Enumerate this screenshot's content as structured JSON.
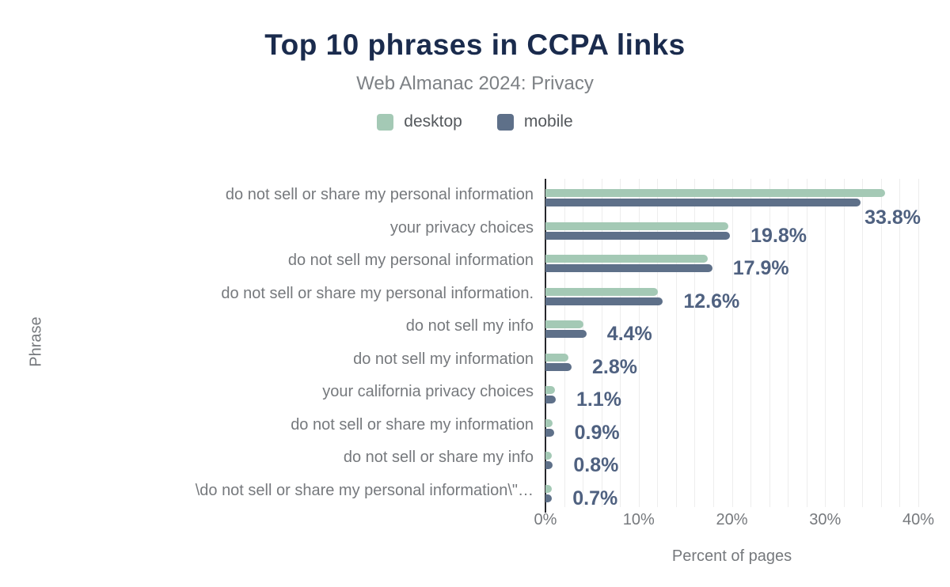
{
  "header": {
    "title": "Top 10 phrases in CCPA links",
    "subtitle": "Web Almanac 2024: Privacy"
  },
  "legend": {
    "items": [
      {
        "name": "desktop",
        "label": "desktop",
        "color": "#a4c9b5"
      },
      {
        "name": "mobile",
        "label": "mobile",
        "color": "#5e7089"
      }
    ]
  },
  "chart_data": {
    "type": "bar",
    "orientation": "horizontal",
    "title": "Top 10 phrases in CCPA links",
    "subtitle": "Web Almanac 2024: Privacy",
    "xlabel": "Percent of pages",
    "ylabel": "Phrase",
    "xlim": [
      0,
      40
    ],
    "xticks": [
      {
        "value": 0,
        "label": "0%"
      },
      {
        "value": 10,
        "label": "10%"
      },
      {
        "value": 20,
        "label": "20%"
      },
      {
        "value": 30,
        "label": "30%"
      },
      {
        "value": 40,
        "label": "40%"
      }
    ],
    "minor_gridline_step": 2,
    "grid": "vertical-minor",
    "legend_position": "top",
    "categories": [
      "do not sell or share my personal information",
      "your privacy choices",
      "do not sell my personal information",
      "do not sell or share my personal information.",
      "do not sell my info",
      "do not sell my information",
      "your california privacy choices",
      "do not sell or share my information",
      "do not sell or share my info",
      "\\do not sell or share my personal information\\\"…"
    ],
    "series": [
      {
        "name": "desktop",
        "color": "#a4c9b5",
        "values": [
          36.4,
          19.6,
          17.4,
          12.1,
          4.1,
          2.5,
          1.0,
          0.8,
          0.7,
          0.7
        ]
      },
      {
        "name": "mobile",
        "color": "#5e7089",
        "values": [
          33.8,
          19.8,
          17.9,
          12.6,
          4.4,
          2.8,
          1.1,
          0.9,
          0.8,
          0.7
        ]
      }
    ],
    "data_labels": {
      "labeled_series": "mobile",
      "values": [
        "33.8%",
        "19.8%",
        "17.9%",
        "12.6%",
        "4.4%",
        "2.8%",
        "1.1%",
        "0.9%",
        "0.8%",
        "0.7%"
      ]
    }
  },
  "colors": {
    "desktop_bar": "#a4c9b5",
    "mobile_bar": "#5e7089",
    "title": "#1a2b4d",
    "subtitle": "#7d8185",
    "axis_text": "#76797d",
    "data_label": "#4f6180",
    "gridline": "#ededed",
    "axis_line": "#26272b",
    "background": "#ffffff"
  }
}
